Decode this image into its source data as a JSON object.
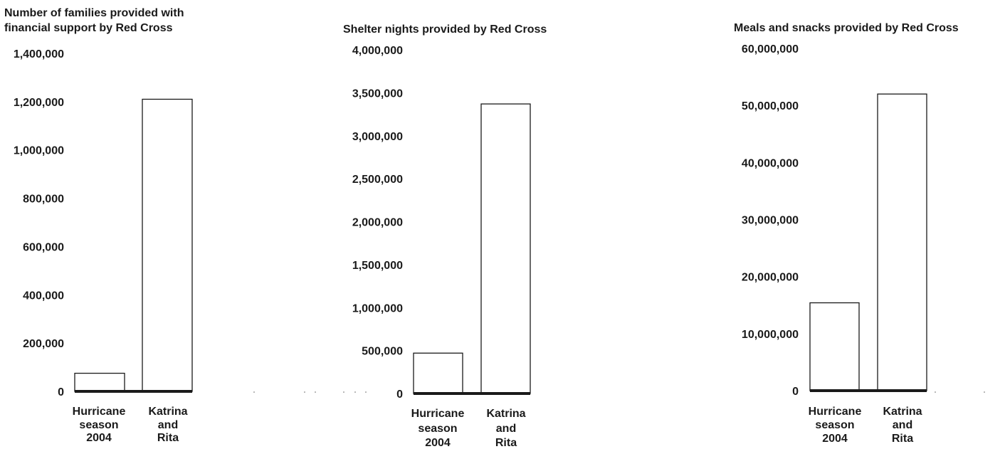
{
  "chart_data": [
    {
      "type": "bar",
      "title_lines": [
        "Number of families provided with",
        "financial support by Red Cross"
      ],
      "categories": [
        [
          "Hurricane",
          "season",
          "2004"
        ],
        [
          "Katrina",
          "and",
          "Rita"
        ]
      ],
      "values": [
        75000,
        1210000
      ],
      "ylim": [
        0,
        1400000
      ],
      "yticks": [
        "0",
        "200,000",
        "400,000",
        "600,000",
        "800,000",
        "1,000,000",
        "1,200,000",
        "1,400,000"
      ],
      "ytick_values": [
        0,
        200000,
        400000,
        600000,
        800000,
        1000000,
        1200000,
        1400000
      ],
      "xlabel": "",
      "ylabel": "",
      "grid": false
    },
    {
      "type": "bar",
      "title_lines": [
        "Shelter nights provided by Red Cross"
      ],
      "categories": [
        [
          "Hurricane",
          "season",
          "2004"
        ],
        [
          "Katrina",
          "and",
          "Rita"
        ]
      ],
      "values": [
        470000,
        3370000
      ],
      "ylim": [
        0,
        4000000
      ],
      "yticks": [
        "0",
        "500,000",
        "1,000,000",
        "1,500,000",
        "2,000,000",
        "2,500,000",
        "3,000,000",
        "3,500,000",
        "4,000,000"
      ],
      "ytick_values": [
        0,
        500000,
        1000000,
        1500000,
        2000000,
        2500000,
        3000000,
        3500000,
        4000000
      ],
      "xlabel": "",
      "ylabel": "",
      "grid": false
    },
    {
      "type": "bar",
      "title_lines": [
        "Meals and snacks provided by Red Cross"
      ],
      "categories": [
        [
          "Hurricane",
          "season",
          "2004"
        ],
        [
          "Katrina",
          "and",
          "Rita"
        ]
      ],
      "values": [
        15400000,
        52000000
      ],
      "ylim": [
        0,
        60000000
      ],
      "yticks": [
        "0",
        "10,000,000",
        "20,000,000",
        "30,000,000",
        "40,000,000",
        "50,000,000",
        "60,000,000"
      ],
      "ytick_values": [
        0,
        10000000,
        20000000,
        30000000,
        40000000,
        50000000,
        60000000
      ],
      "xlabel": "",
      "ylabel": "",
      "grid": false
    }
  ]
}
